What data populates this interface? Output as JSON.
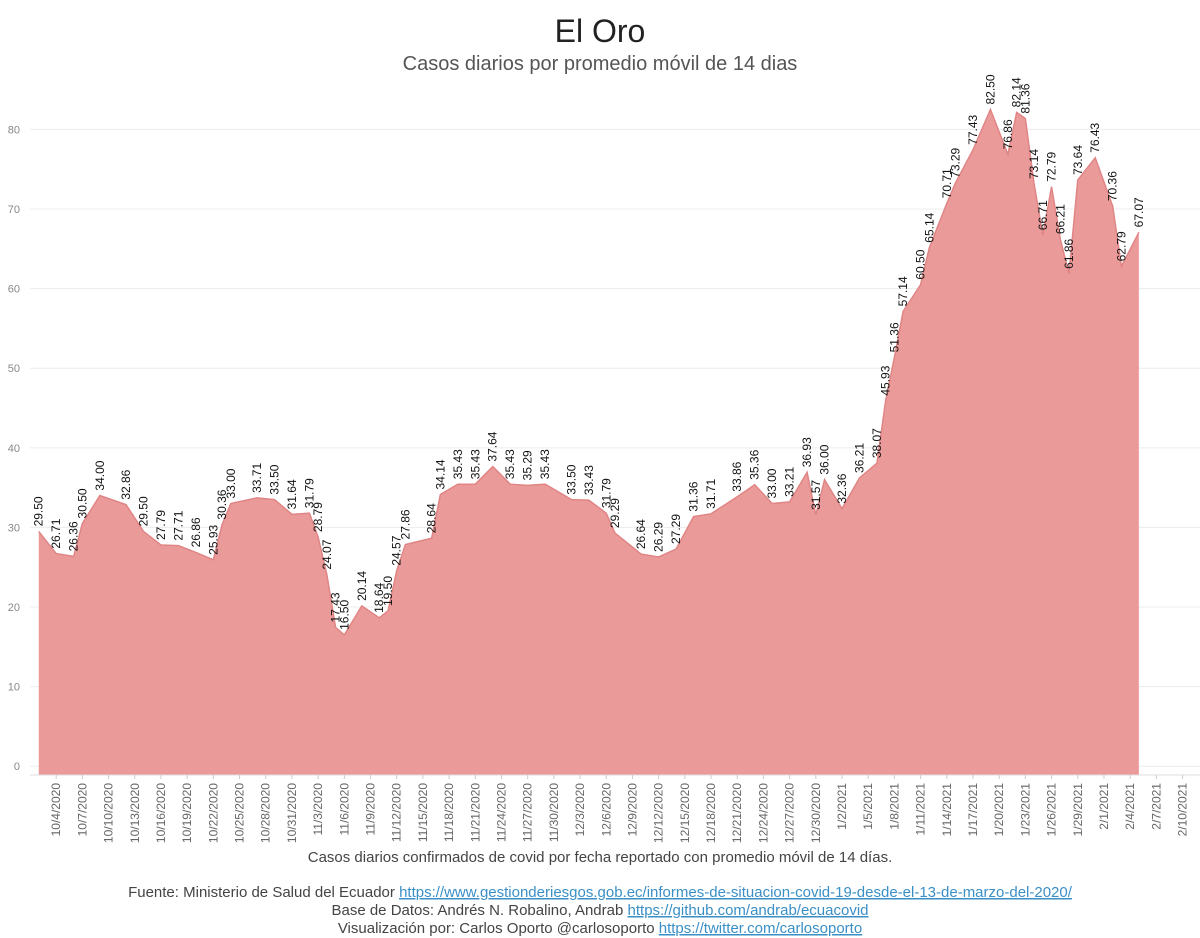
{
  "chart_data": {
    "type": "area",
    "title": "El Oro",
    "subtitle": "Casos diarios por promedio móvil de 14 dias",
    "x": [
      "10/2/2020",
      "10/4/2020",
      "10/6/2020",
      "10/7/2020",
      "10/9/2020",
      "10/12/2020",
      "10/14/2020",
      "10/16/2020",
      "10/18/2020",
      "10/20/2020",
      "10/22/2020",
      "10/23/2020",
      "10/24/2020",
      "10/27/2020",
      "10/29/2020",
      "10/31/2020",
      "11/2/2020",
      "11/3/2020",
      "11/4/2020",
      "11/5/2020",
      "11/6/2020",
      "11/8/2020",
      "11/10/2020",
      "11/11/2020",
      "11/12/2020",
      "11/13/2020",
      "11/16/2020",
      "11/17/2020",
      "11/19/2020",
      "11/21/2020",
      "11/23/2020",
      "11/25/2020",
      "11/27/2020",
      "11/29/2020",
      "12/2/2020",
      "12/4/2020",
      "12/6/2020",
      "12/7/2020",
      "12/10/2020",
      "12/12/2020",
      "12/14/2020",
      "12/16/2020",
      "12/18/2020",
      "12/21/2020",
      "12/23/2020",
      "12/25/2020",
      "12/27/2020",
      "12/29/2020",
      "12/30/2020",
      "12/31/2020",
      "1/2/2021",
      "1/4/2021",
      "1/6/2021",
      "1/7/2021",
      "1/8/2021",
      "1/9/2021",
      "1/11/2021",
      "1/12/2021",
      "1/14/2021",
      "1/15/2021",
      "1/17/2021",
      "1/19/2021",
      "1/21/2021",
      "1/22/2021",
      "1/23/2021",
      "1/24/2021",
      "1/25/2021",
      "1/26/2021",
      "1/27/2021",
      "1/28/2021",
      "1/29/2021",
      "1/31/2021",
      "2/2/2021",
      "2/3/2021",
      "2/5/2021"
    ],
    "values": [
      29.5,
      26.71,
      26.36,
      30.5,
      34,
      32.86,
      29.5,
      27.79,
      27.71,
      26.86,
      25.93,
      30.36,
      33,
      33.71,
      33.5,
      31.64,
      31.79,
      28.79,
      24.07,
      17.43,
      16.5,
      20.14,
      18.64,
      19.5,
      24.57,
      27.86,
      28.64,
      34.14,
      35.43,
      35.43,
      37.64,
      35.43,
      35.29,
      35.43,
      33.5,
      33.43,
      31.79,
      29.29,
      26.64,
      26.29,
      27.29,
      31.36,
      31.71,
      33.86,
      35.36,
      33,
      33.21,
      36.93,
      31.57,
      36,
      32.36,
      36.21,
      38.07,
      45.93,
      51.36,
      57.14,
      60.5,
      65.14,
      70.71,
      73.29,
      77.43,
      82.5,
      76.86,
      82.14,
      81.36,
      73.14,
      66.71,
      72.79,
      66.21,
      61.86,
      73.64,
      76.43,
      70.36,
      62.79,
      67.07
    ],
    "value_labels": [
      "29.50",
      "26.71",
      "26.36",
      "30.50",
      "34.00",
      "32.86",
      "29.50",
      "27.79",
      "27.71",
      "26.86",
      "25.93",
      "30.36",
      "33.00",
      "33.71",
      "33.50",
      "31.64",
      "31.79",
      "28.79",
      "24.07",
      "17.43",
      "16.50",
      "20.14",
      "18.64",
      "19.50",
      "24.57",
      "27.86",
      "28.64",
      "34.14",
      "35.43",
      "35.43",
      "37.64",
      "35.43",
      "35.29",
      "35.43",
      "33.50",
      "33.43",
      "31.79",
      "29.29",
      "26.64",
      "26.29",
      "27.29",
      "31.36",
      "31.71",
      "33.86",
      "35.36",
      "33.00",
      "33.21",
      "36.93",
      "31.57",
      "36.00",
      "32.36",
      "36.21",
      "38.07",
      "45.93",
      "51.36",
      "57.14",
      "60.50",
      "65.14",
      "70.71",
      "73.29",
      "77.43",
      "82.50",
      "76.86",
      "82.14",
      "81.36",
      "73.14",
      "66.71",
      "72.79",
      "66.21",
      "61.86",
      "73.64",
      "76.43",
      "70.36",
      "62.79",
      "67.07"
    ],
    "color": "#eb9a9a",
    "xlim": [
      "10/1/2020",
      "2/12/2021"
    ],
    "xticks": [
      "10/4/2020",
      "10/7/2020",
      "10/10/2020",
      "10/13/2020",
      "10/16/2020",
      "10/19/2020",
      "10/22/2020",
      "10/25/2020",
      "10/28/2020",
      "10/31/2020",
      "11/3/2020",
      "11/6/2020",
      "11/9/2020",
      "11/12/2020",
      "11/15/2020",
      "11/18/2020",
      "11/21/2020",
      "11/24/2020",
      "11/27/2020",
      "11/30/2020",
      "12/3/2020",
      "12/6/2020",
      "12/9/2020",
      "12/12/2020",
      "12/15/2020",
      "12/18/2020",
      "12/21/2020",
      "12/24/2020",
      "12/27/2020",
      "12/30/2020",
      "1/2/2021",
      "1/5/2021",
      "1/8/2021",
      "1/11/2021",
      "1/14/2021",
      "1/17/2021",
      "1/20/2021",
      "1/23/2021",
      "1/26/2021",
      "1/29/2021",
      "2/1/2021",
      "2/4/2021",
      "2/7/2021",
      "2/10/2021"
    ],
    "ylim": [
      -1.1,
      85.2
    ],
    "yticks": [
      0,
      10,
      20,
      30,
      40,
      50,
      60,
      70,
      80
    ],
    "grid": true,
    "caption": "Casos diarios confirmados de covid por fecha reportado con promedio móvil de 14 días.",
    "sources": [
      {
        "text": "Fuente: Ministerio de Salud del Ecuador",
        "link": "https://www.gestionderiesgos.gob.ec/informes-de-situacion-covid-19-desde-el-13-de-marzo-del-2020/"
      },
      {
        "text": "Base de Datos: Andrés N. Robalino, Andrab",
        "link": "https://github.com/andrab/ecuacovid"
      },
      {
        "text": "Visualización por: Carlos Oporto @carlosoporto",
        "link": "https://twitter.com/carlosoporto"
      }
    ]
  }
}
